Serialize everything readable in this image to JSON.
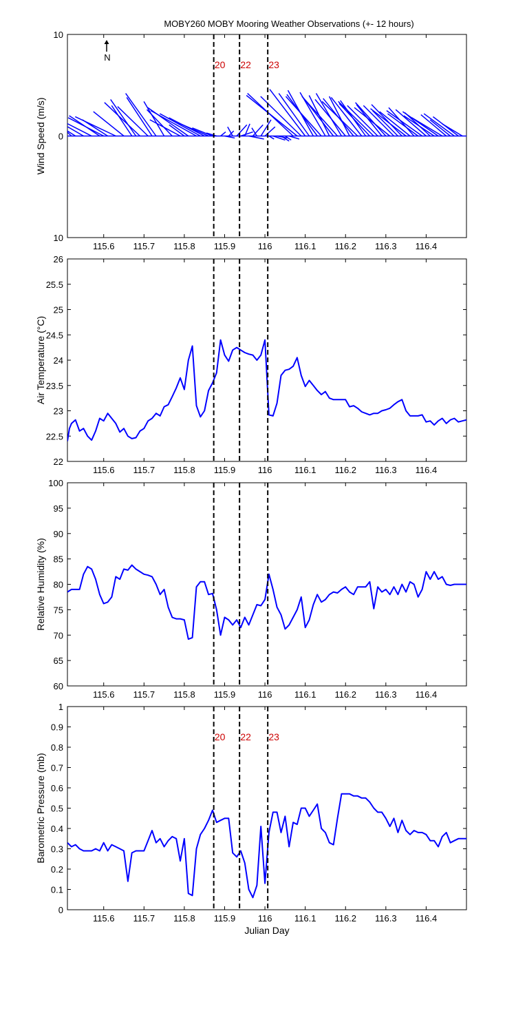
{
  "title": "MOBY260 MOBY Mooring Weather Observations (+- 12 hours)",
  "north_label": "N",
  "colors": {
    "series": "#0000ff",
    "marker_text": "#cc0000",
    "axes": "#000000",
    "background": "#ffffff"
  },
  "markers": {
    "x": [
      115.873,
      115.937,
      116.007
    ],
    "labels": [
      "20",
      "22",
      "23"
    ]
  },
  "chart_data": [
    {
      "type": "wind-vector",
      "ylabel": "Wind Speed (m/s)",
      "ylim": [
        -10,
        10
      ],
      "yticks": [
        10,
        0,
        10
      ],
      "xlim": [
        115.51,
        116.5
      ],
      "xticks": [
        "115.6",
        "115.7",
        "115.8",
        "115.9",
        "116",
        "116.1",
        "116.2",
        "116.3",
        "116.4"
      ],
      "marker_labels_shown": true,
      "vectors": {
        "t": [
          115.51,
          115.52,
          115.53,
          115.55,
          115.57,
          115.59,
          115.6,
          115.61,
          115.63,
          115.65,
          115.67,
          115.68,
          115.69,
          115.71,
          115.72,
          115.73,
          115.75,
          115.77,
          115.79,
          115.8,
          115.81,
          115.83,
          115.84,
          115.85,
          115.86,
          115.87,
          115.88,
          115.89,
          115.9,
          115.91,
          115.92,
          115.93,
          115.94,
          115.95,
          115.96,
          115.97,
          115.98,
          115.99,
          116.0,
          116.01,
          116.02,
          116.03,
          116.04,
          116.05,
          116.06,
          116.07,
          116.08,
          116.09,
          116.1,
          116.11,
          116.12,
          116.13,
          116.14,
          116.15,
          116.16,
          116.17,
          116.18,
          116.19,
          116.2,
          116.21,
          116.22,
          116.23,
          116.24,
          116.25,
          116.26,
          116.27,
          116.28,
          116.29,
          116.3,
          116.31,
          116.32,
          116.33,
          116.34,
          116.35,
          116.36,
          116.37,
          116.38,
          116.39,
          116.4,
          116.41,
          116.42,
          116.43,
          116.44,
          116.45,
          116.46,
          116.47,
          116.48,
          116.49
        ],
        "u": [
          -0.35,
          -0.3,
          -0.4,
          -0.5,
          -0.45,
          -0.3,
          -0.35,
          -0.25,
          -0.4,
          -0.3,
          -0.2,
          -0.25,
          -0.35,
          -0.3,
          -0.25,
          -0.3,
          -0.2,
          -0.25,
          -0.3,
          -0.15,
          -0.4,
          -0.45,
          -0.4,
          -0.35,
          -0.3,
          -0.2,
          -0.1,
          0.05,
          0.1,
          0.05,
          -0.05,
          0.1,
          0.12,
          0.05,
          0.15,
          0.1,
          -0.05,
          0.1,
          0.1,
          0.05,
          0.12,
          0.1,
          0.08,
          0.06,
          0.1,
          -0.45,
          -0.5,
          -0.4,
          -0.35,
          -0.3,
          -0.25,
          -0.3,
          -0.35,
          -0.25,
          -0.2,
          -0.3,
          -0.35,
          -0.25,
          -0.3,
          -0.2,
          -0.3,
          -0.35,
          -0.3,
          -0.25,
          -0.3,
          -0.35,
          -0.3,
          -0.25,
          -0.3,
          -0.35,
          -0.3,
          -0.25,
          -0.3,
          -0.35,
          -0.3,
          -0.25,
          -0.3,
          -0.35,
          -0.3,
          -0.25,
          -0.3,
          -0.35,
          -0.3,
          -0.25,
          -0.2,
          -0.3,
          -0.25,
          -0.2
        ],
        "v": [
          2.2,
          2.8,
          2.5,
          2.9,
          2.3,
          2.0,
          1.8,
          1.6,
          1.9,
          2.4,
          3.0,
          3.6,
          3.3,
          2.9,
          3.8,
          4.2,
          3.4,
          2.6,
          1.6,
          1.1,
          2.8,
          2.5,
          2.2,
          1.8,
          1.3,
          0.8,
          0.3,
          0.4,
          -0.2,
          0.5,
          0.9,
          1.1,
          0.4,
          1.2,
          -0.3,
          1.1,
          0.8,
          1.6,
          0.9,
          -0.3,
          -0.4,
          -0.2,
          -0.5,
          -0.4,
          -0.3,
          4.2,
          4.0,
          3.9,
          4.6,
          4.2,
          4.5,
          4.1,
          3.9,
          4.3,
          4.0,
          3.8,
          3.9,
          4.2,
          3.6,
          3.9,
          3.7,
          3.4,
          3.8,
          3.5,
          3.2,
          3.4,
          3.0,
          3.1,
          3.3,
          2.8,
          3.0,
          2.5,
          3.1,
          2.7,
          2.4,
          2.8,
          2.2,
          2.5,
          2.6,
          2.3,
          2.0,
          2.4,
          1.8,
          2.1,
          1.6,
          2.2,
          1.9,
          1.2
        ]
      }
    },
    {
      "type": "line",
      "ylabel": "Air Temperature (°C)",
      "ylim": [
        22,
        26
      ],
      "yticks": [
        "22",
        "22.5",
        "23",
        "23.5",
        "24",
        "24.5",
        "25",
        "25.5",
        "26"
      ],
      "xlim": [
        115.51,
        116.5
      ],
      "xticks": [
        "115.6",
        "115.7",
        "115.8",
        "115.9",
        "116",
        "116.1",
        "116.2",
        "116.3",
        "116.4"
      ],
      "series": [
        {
          "x": [
            115.51,
            115.515,
            115.52,
            115.53,
            115.54,
            115.55,
            115.56,
            115.57,
            115.58,
            115.59,
            115.6,
            115.61,
            115.62,
            115.63,
            115.64,
            115.65,
            115.66,
            115.67,
            115.68,
            115.69,
            115.7,
            115.71,
            115.72,
            115.73,
            115.74,
            115.75,
            115.76,
            115.77,
            115.78,
            115.79,
            115.8,
            115.81,
            115.82,
            115.83,
            115.84,
            115.85,
            115.86,
            115.87,
            115.875,
            115.88,
            115.89,
            115.9,
            115.91,
            115.92,
            115.93,
            115.94,
            115.95,
            115.96,
            115.97,
            115.98,
            115.99,
            116.0,
            116.01,
            116.02,
            116.03,
            116.04,
            116.05,
            116.06,
            116.07,
            116.08,
            116.09,
            116.1,
            116.11,
            116.12,
            116.13,
            116.14,
            116.15,
            116.16,
            116.17,
            116.18,
            116.19,
            116.2,
            116.21,
            116.22,
            116.23,
            116.24,
            116.25,
            116.26,
            116.27,
            116.28,
            116.29,
            116.3,
            116.31,
            116.32,
            116.33,
            116.34,
            116.35,
            116.36,
            116.37,
            116.38,
            116.39,
            116.4,
            116.41,
            116.42,
            116.43,
            116.44,
            116.45,
            116.46,
            116.47,
            116.48,
            116.49,
            116.5
          ],
          "y": [
            22.4,
            22.65,
            22.75,
            22.82,
            22.6,
            22.65,
            22.5,
            22.42,
            22.6,
            22.85,
            22.8,
            22.95,
            22.85,
            22.75,
            22.58,
            22.65,
            22.5,
            22.45,
            22.47,
            22.6,
            22.65,
            22.8,
            22.85,
            22.95,
            22.9,
            23.08,
            23.12,
            23.28,
            23.45,
            23.65,
            23.42,
            24.0,
            24.28,
            23.1,
            22.88,
            23.0,
            23.4,
            23.55,
            23.65,
            23.75,
            24.4,
            24.1,
            23.98,
            24.2,
            24.25,
            24.2,
            24.15,
            24.12,
            24.1,
            24.0,
            24.1,
            24.4,
            22.92,
            22.9,
            23.15,
            23.7,
            23.8,
            23.82,
            23.88,
            24.05,
            23.7,
            23.48,
            23.6,
            23.5,
            23.4,
            23.32,
            23.38,
            23.25,
            23.22,
            23.22,
            23.22,
            23.22,
            23.08,
            23.1,
            23.05,
            22.98,
            22.95,
            22.92,
            22.95,
            22.95,
            23.0,
            23.02,
            23.05,
            23.12,
            23.18,
            23.22,
            23.0,
            22.9,
            22.9,
            22.9,
            22.92,
            22.78,
            22.8,
            22.72,
            22.8,
            22.85,
            22.75,
            22.82,
            22.85,
            22.78,
            22.8,
            22.82
          ]
        }
      ]
    },
    {
      "type": "line",
      "ylabel": "Relative Humidity (%)",
      "ylim": [
        60,
        100
      ],
      "yticks": [
        "60",
        "65",
        "70",
        "75",
        "80",
        "85",
        "90",
        "95",
        "100"
      ],
      "xlim": [
        115.51,
        116.5
      ],
      "xticks": [
        "115.6",
        "115.7",
        "115.8",
        "115.9",
        "116",
        "116.1",
        "116.2",
        "116.3",
        "116.4"
      ],
      "series": [
        {
          "x": [
            115.51,
            115.52,
            115.53,
            115.54,
            115.55,
            115.56,
            115.57,
            115.58,
            115.59,
            115.6,
            115.61,
            115.62,
            115.63,
            115.64,
            115.65,
            115.66,
            115.67,
            115.68,
            115.69,
            115.7,
            115.71,
            115.72,
            115.73,
            115.74,
            115.75,
            115.76,
            115.77,
            115.78,
            115.79,
            115.8,
            115.81,
            115.82,
            115.83,
            115.84,
            115.85,
            115.86,
            115.87,
            115.88,
            115.89,
            115.9,
            115.91,
            115.92,
            115.93,
            115.94,
            115.95,
            115.96,
            115.97,
            115.98,
            115.99,
            116.0,
            116.01,
            116.02,
            116.03,
            116.04,
            116.05,
            116.06,
            116.07,
            116.08,
            116.09,
            116.1,
            116.11,
            116.12,
            116.13,
            116.14,
            116.15,
            116.16,
            116.17,
            116.18,
            116.19,
            116.2,
            116.21,
            116.22,
            116.23,
            116.24,
            116.25,
            116.26,
            116.27,
            116.28,
            116.29,
            116.3,
            116.31,
            116.32,
            116.33,
            116.34,
            116.35,
            116.36,
            116.37,
            116.38,
            116.39,
            116.4,
            116.41,
            116.42,
            116.43,
            116.44,
            116.45,
            116.46,
            116.47,
            116.48,
            116.49,
            116.5
          ],
          "y": [
            78.5,
            79.0,
            79.0,
            79.0,
            82.0,
            83.5,
            83.0,
            81.0,
            78.0,
            76.2,
            76.5,
            77.5,
            81.5,
            81.0,
            83.0,
            82.8,
            83.8,
            83.0,
            82.5,
            82.0,
            81.8,
            81.5,
            80.0,
            78.0,
            79.0,
            75.5,
            73.5,
            73.2,
            73.2,
            73.0,
            69.2,
            69.5,
            79.5,
            80.5,
            80.5,
            78.0,
            78.2,
            75.0,
            70.0,
            73.5,
            73.0,
            72.0,
            73.0,
            71.5,
            73.5,
            72.0,
            74.0,
            76.0,
            75.8,
            77.0,
            82.0,
            79.0,
            75.5,
            74.0,
            71.2,
            72.0,
            73.5,
            75.0,
            77.5,
            71.5,
            73.0,
            76.0,
            78.0,
            76.5,
            77.0,
            78.0,
            78.5,
            78.3,
            79.0,
            79.5,
            78.5,
            78.0,
            79.5,
            79.5,
            79.5,
            80.5,
            75.2,
            79.5,
            78.5,
            79.0,
            78.0,
            79.5,
            78.0,
            80.0,
            78.5,
            80.5,
            80.0,
            77.5,
            79.0,
            82.5,
            81.0,
            82.5,
            81.0,
            81.5,
            80.0,
            79.8,
            80.0,
            80.0,
            80.0,
            80.0
          ]
        }
      ]
    },
    {
      "type": "line",
      "ylabel": "Barometric Pressure (mb)",
      "xlabel": "Julian Day",
      "ylim": [
        0,
        1
      ],
      "yticks": [
        "0",
        "0.1",
        "0.2",
        "0.3",
        "0.4",
        "0.5",
        "0.6",
        "0.7",
        "0.8",
        "0.9",
        "1"
      ],
      "xlim": [
        115.51,
        116.5
      ],
      "xticks": [
        "115.6",
        "115.7",
        "115.8",
        "115.9",
        "116",
        "116.1",
        "116.2",
        "116.3",
        "116.4"
      ],
      "marker_labels_shown": true,
      "series": [
        {
          "x": [
            115.51,
            115.52,
            115.53,
            115.54,
            115.55,
            115.56,
            115.57,
            115.58,
            115.59,
            115.6,
            115.61,
            115.62,
            115.63,
            115.64,
            115.65,
            115.66,
            115.67,
            115.68,
            115.69,
            115.7,
            115.71,
            115.72,
            115.73,
            115.74,
            115.75,
            115.76,
            115.77,
            115.78,
            115.79,
            115.8,
            115.81,
            115.82,
            115.83,
            115.84,
            115.85,
            115.86,
            115.87,
            115.88,
            115.89,
            115.9,
            115.91,
            115.92,
            115.93,
            115.94,
            115.95,
            115.96,
            115.97,
            115.98,
            115.99,
            116.0,
            116.01,
            116.02,
            116.03,
            116.04,
            116.05,
            116.06,
            116.07,
            116.08,
            116.09,
            116.1,
            116.11,
            116.12,
            116.13,
            116.14,
            116.15,
            116.16,
            116.17,
            116.18,
            116.19,
            116.2,
            116.21,
            116.22,
            116.23,
            116.24,
            116.25,
            116.26,
            116.27,
            116.28,
            116.29,
            116.3,
            116.31,
            116.32,
            116.33,
            116.34,
            116.35,
            116.36,
            116.37,
            116.38,
            116.39,
            116.4,
            116.41,
            116.42,
            116.43,
            116.44,
            116.45,
            116.46,
            116.47,
            116.48,
            116.49,
            116.5
          ],
          "y": [
            0.33,
            0.31,
            0.32,
            0.3,
            0.29,
            0.29,
            0.29,
            0.3,
            0.29,
            0.33,
            0.29,
            0.32,
            0.31,
            0.3,
            0.29,
            0.14,
            0.28,
            0.29,
            0.29,
            0.29,
            0.34,
            0.39,
            0.33,
            0.35,
            0.31,
            0.34,
            0.36,
            0.35,
            0.24,
            0.35,
            0.08,
            0.07,
            0.3,
            0.37,
            0.4,
            0.44,
            0.49,
            0.43,
            0.44,
            0.45,
            0.45,
            0.28,
            0.26,
            0.29,
            0.23,
            0.1,
            0.06,
            0.12,
            0.41,
            0.13,
            0.38,
            0.48,
            0.48,
            0.38,
            0.46,
            0.31,
            0.43,
            0.42,
            0.5,
            0.5,
            0.46,
            0.49,
            0.52,
            0.4,
            0.38,
            0.33,
            0.32,
            0.45,
            0.57,
            0.57,
            0.57,
            0.56,
            0.56,
            0.55,
            0.55,
            0.53,
            0.5,
            0.48,
            0.48,
            0.45,
            0.41,
            0.45,
            0.38,
            0.44,
            0.39,
            0.37,
            0.39,
            0.38,
            0.38,
            0.37,
            0.34,
            0.34,
            0.31,
            0.36,
            0.38,
            0.33,
            0.34,
            0.35,
            0.35,
            0.35
          ]
        }
      ]
    }
  ]
}
